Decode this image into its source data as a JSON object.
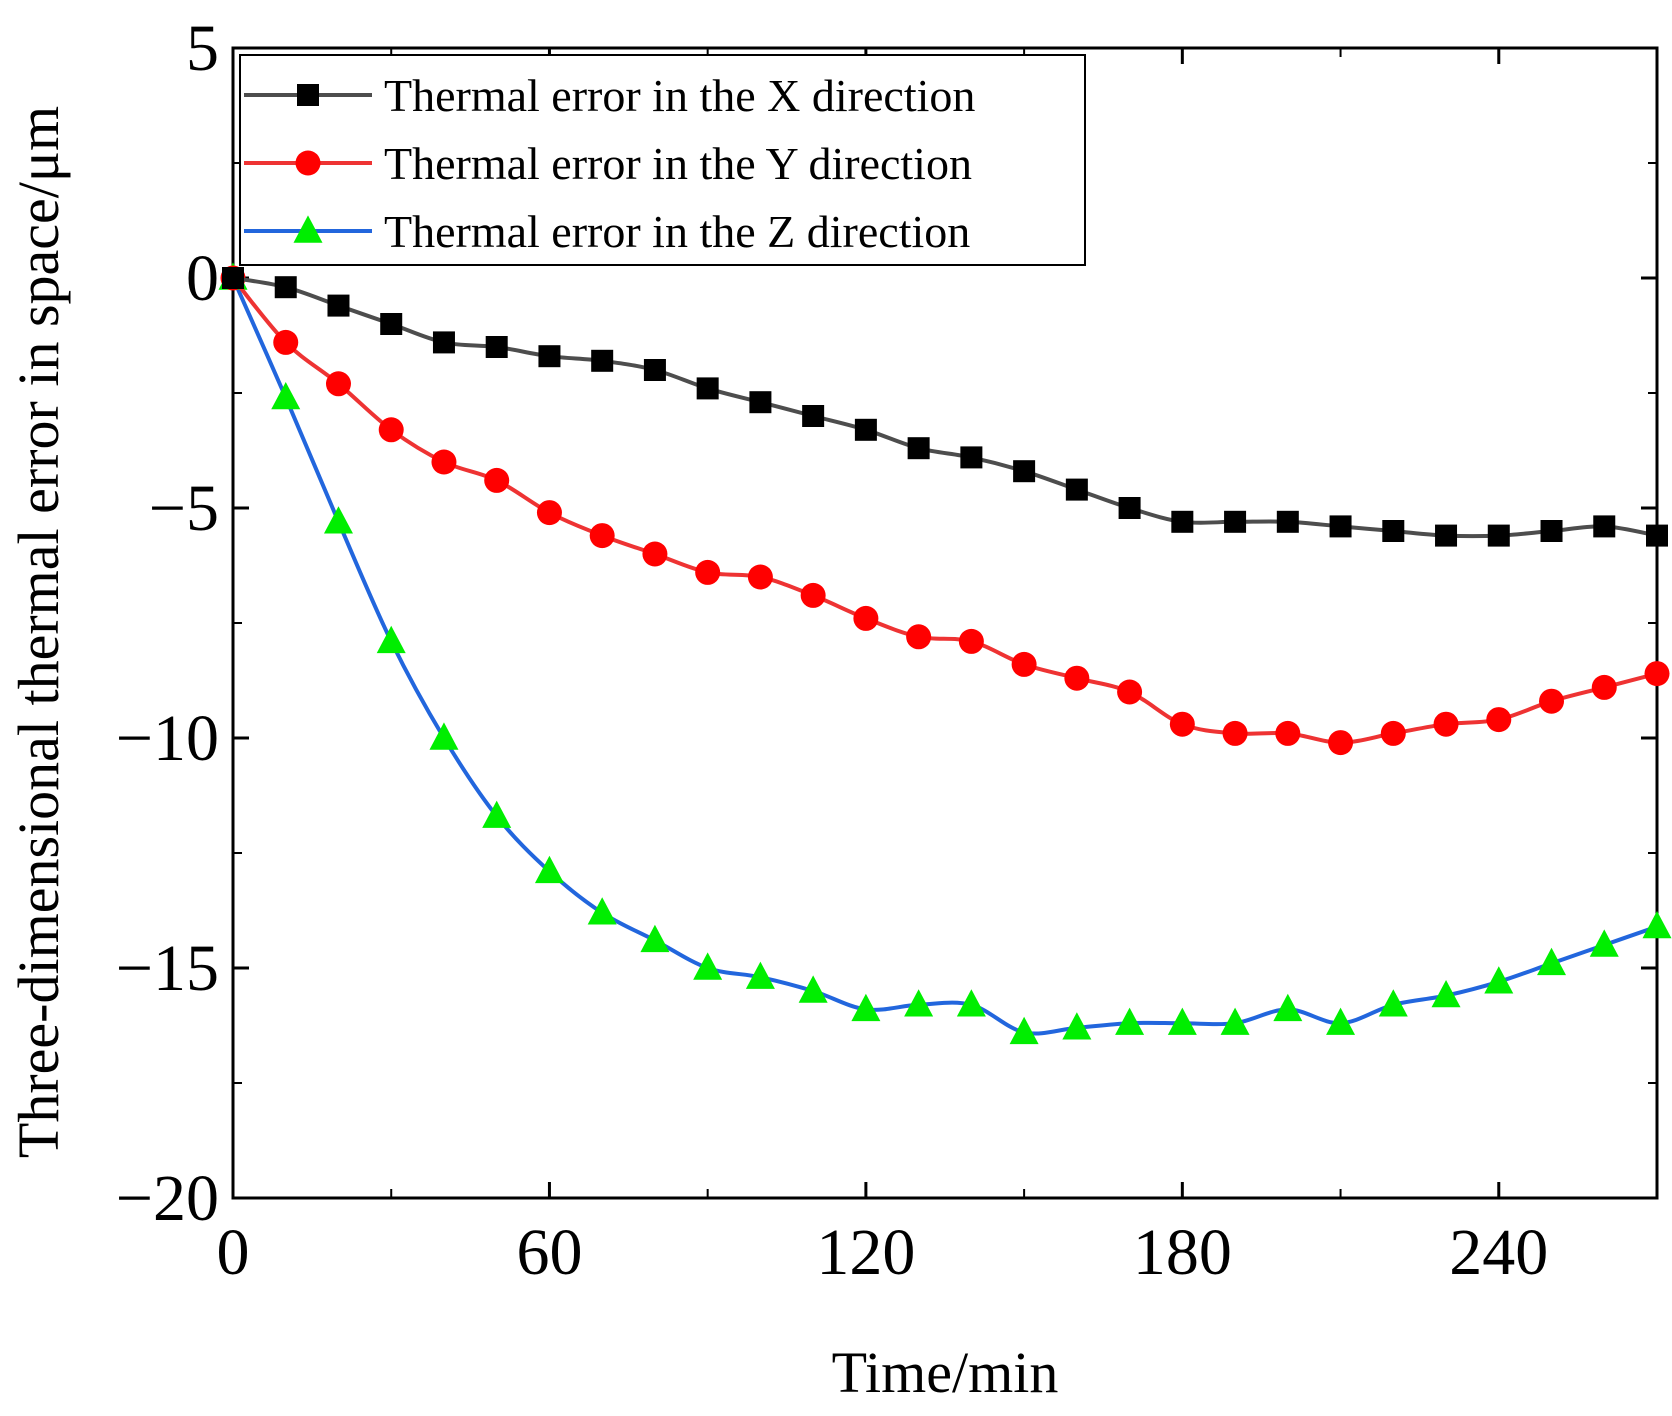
{
  "chart_data": {
    "type": "line",
    "title": "",
    "xlabel": "Time/min",
    "ylabel": "Three-dimensional thermal error in space/μm",
    "xlim": [
      0,
      270
    ],
    "ylim": [
      -20,
      5
    ],
    "xticks": [
      0,
      60,
      120,
      180,
      240
    ],
    "xtick_labels": [
      "0",
      "60",
      "120",
      "180",
      "240"
    ],
    "yticks": [
      5,
      0,
      -5,
      -10,
      -15,
      -20
    ],
    "ytick_labels": [
      "5",
      "0",
      "−5",
      "−10",
      "−15",
      "−20"
    ],
    "grid": false,
    "legend_position": "top-left",
    "x": [
      0,
      10,
      20,
      30,
      40,
      50,
      60,
      70,
      80,
      90,
      100,
      110,
      120,
      130,
      140,
      150,
      160,
      170,
      180,
      190,
      200,
      210,
      220,
      230,
      240,
      250,
      260,
      270
    ],
    "series": [
      {
        "name": "Thermal error in the X direction",
        "color": "#4d4d4d",
        "marker": "square",
        "marker_color": "#000000",
        "values": [
          0,
          -0.2,
          -0.6,
          -1.0,
          -1.4,
          -1.5,
          -1.7,
          -1.8,
          -2.0,
          -2.4,
          -2.7,
          -3.0,
          -3.3,
          -3.7,
          -3.9,
          -4.2,
          -4.6,
          -5.0,
          -5.3,
          -5.3,
          -5.3,
          -5.4,
          -5.5,
          -5.6,
          -5.6,
          -5.5,
          -5.4,
          -5.6
        ]
      },
      {
        "name": "Thermal error in the Y direction",
        "color": "#ee3333",
        "marker": "circle",
        "marker_color": "#ff0000",
        "values": [
          0,
          -1.4,
          -2.3,
          -3.3,
          -4.0,
          -4.4,
          -5.1,
          -5.6,
          -6.0,
          -6.4,
          -6.5,
          -6.9,
          -7.4,
          -7.8,
          -7.9,
          -8.4,
          -8.7,
          -9.0,
          -9.7,
          -9.9,
          -9.9,
          -10.1,
          -9.9,
          -9.7,
          -9.6,
          -9.2,
          -8.9,
          -8.6
        ]
      },
      {
        "name": "Thermal error in the Z direction",
        "color": "#2266dd",
        "marker": "triangle",
        "marker_color": "#00ee00",
        "values": [
          0,
          -2.6,
          -5.3,
          -7.9,
          -10.0,
          -11.7,
          -12.9,
          -13.8,
          -14.4,
          -15.0,
          -15.2,
          -15.5,
          -15.9,
          -15.8,
          -15.8,
          -16.4,
          -16.3,
          -16.2,
          -16.2,
          -16.2,
          -15.9,
          -16.2,
          -15.8,
          -15.6,
          -15.3,
          -14.9,
          -14.5,
          -14.1
        ]
      }
    ]
  }
}
